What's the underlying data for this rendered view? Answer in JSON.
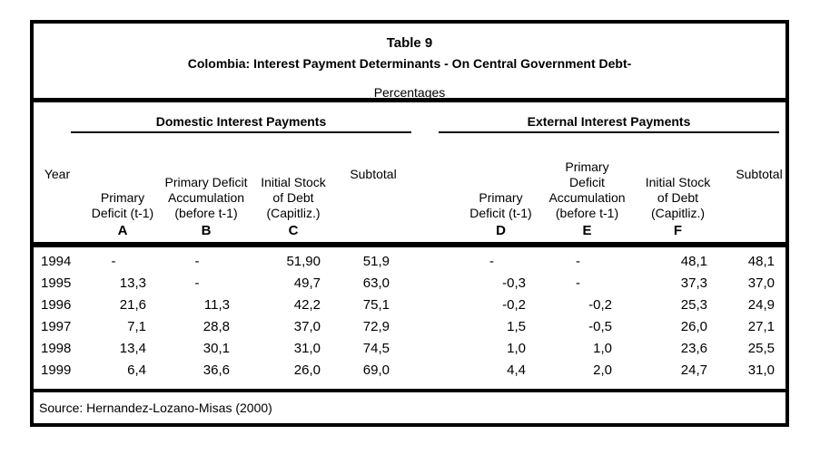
{
  "table": {
    "title": "Table 9",
    "subtitle": "Colombia: Interest Payment Determinants - On Central Government Debt-",
    "unit_label": "Percentages",
    "groups": [
      {
        "label": "Domestic Interest Payments"
      },
      {
        "label": "External Interest Payments"
      }
    ],
    "header": {
      "year_label": "Year",
      "cols": [
        {
          "lines": [
            "Primary",
            "Deficit (t-1)"
          ],
          "letter": "A"
        },
        {
          "lines": [
            "Primary Deficit",
            "Accumulation",
            "(before t-1)"
          ],
          "letter": "B"
        },
        {
          "lines": [
            "Initial Stock",
            "of Debt",
            "(Capitliz.)"
          ],
          "letter": "C"
        },
        {
          "lines": [
            "Subtotal"
          ],
          "letter": ""
        },
        {
          "lines": [
            "Primary",
            "Deficit (t-1)"
          ],
          "letter": "D"
        },
        {
          "lines": [
            "Primary",
            "Deficit",
            "Accumulation",
            "(before t-1)"
          ],
          "letter": "E"
        },
        {
          "lines": [
            "Initial Stock",
            "of Debt",
            "(Capitliz.)"
          ],
          "letter": "F"
        },
        {
          "lines": [
            "Subtotal"
          ],
          "letter": ""
        }
      ]
    },
    "rows": [
      {
        "year": "1994",
        "a": "-",
        "b": "-",
        "c": "51,90",
        "sub1": "51,9",
        "d": "-",
        "e": "-",
        "f": "48,1",
        "sub2": "48,1"
      },
      {
        "year": "1995",
        "a": "13,3",
        "b": "-",
        "c": "49,7",
        "sub1": "63,0",
        "d": "-0,3",
        "e": "-",
        "f": "37,3",
        "sub2": "37,0"
      },
      {
        "year": "1996",
        "a": "21,6",
        "b": "11,3",
        "c": "42,2",
        "sub1": "75,1",
        "d": "-0,2",
        "e": "-0,2",
        "f": "25,3",
        "sub2": "24,9"
      },
      {
        "year": "1997",
        "a": "7,1",
        "b": "28,8",
        "c": "37,0",
        "sub1": "72,9",
        "d": "1,5",
        "e": "-0,5",
        "f": "26,0",
        "sub2": "27,1"
      },
      {
        "year": "1998",
        "a": "13,4",
        "b": "30,1",
        "c": "31,0",
        "sub1": "74,5",
        "d": "1,0",
        "e": "1,0",
        "f": "23,6",
        "sub2": "25,5"
      },
      {
        "year": "1999",
        "a": "6,4",
        "b": "36,6",
        "c": "26,0",
        "sub1": "69,0",
        "d": "4,4",
        "e": "2,0",
        "f": "24,7",
        "sub2": "31,0"
      }
    ],
    "source": "Source: Hernandez-Lozano-Misas (2000)"
  }
}
